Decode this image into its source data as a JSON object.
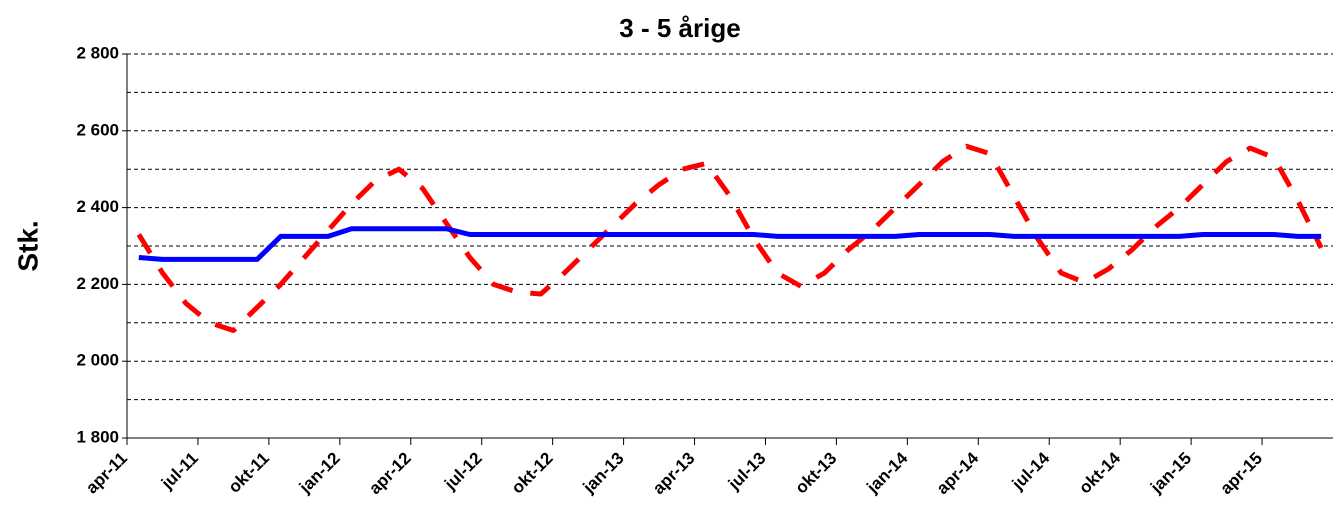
{
  "chart_data": {
    "type": "line",
    "title": "3 - 5 årige",
    "y_label": "Stk.",
    "categories": [
      "apr-11",
      null,
      null,
      "jul-11",
      null,
      null,
      "okt-11",
      null,
      null,
      "jan-12",
      null,
      null,
      "apr-12",
      null,
      null,
      "jul-12",
      null,
      null,
      "okt-12",
      null,
      null,
      "jan-13",
      null,
      null,
      "apr-13",
      null,
      null,
      "jul-13",
      null,
      null,
      "okt-13",
      null,
      null,
      "jan-14",
      null,
      null,
      "apr-14",
      null,
      null,
      "jul-14",
      null,
      null,
      "okt-14",
      null,
      null,
      "jan-15",
      null,
      null,
      "apr-15",
      null,
      null
    ],
    "series": [
      {
        "color": "#ff0000",
        "dashed": true,
        "values": [
          2330,
          2230,
          2150,
          2100,
          2080,
          2140,
          2200,
          2270,
          2340,
          2410,
          2470,
          2500,
          2450,
          2360,
          2270,
          2200,
          2180,
          2175,
          2230,
          2290,
          2350,
          2410,
          2460,
          2500,
          2515,
          2430,
          2320,
          2230,
          2195,
          2230,
          2290,
          2340,
          2400,
          2460,
          2520,
          2560,
          2540,
          2430,
          2320,
          2230,
          2205,
          2240,
          2290,
          2350,
          2400,
          2460,
          2520,
          2555,
          2530,
          2420,
          2295
        ]
      },
      {
        "color": "#0000ff",
        "dashed": false,
        "values": [
          2270,
          2265,
          2265,
          2265,
          2265,
          2265,
          2325,
          2325,
          2325,
          2345,
          2345,
          2345,
          2345,
          2345,
          2330,
          2330,
          2330,
          2330,
          2330,
          2330,
          2330,
          2330,
          2330,
          2330,
          2330,
          2330,
          2330,
          2325,
          2325,
          2325,
          2325,
          2325,
          2325,
          2330,
          2330,
          2330,
          2330,
          2325,
          2325,
          2325,
          2325,
          2325,
          2325,
          2325,
          2325,
          2330,
          2330,
          2330,
          2330,
          2325,
          2325
        ]
      }
    ],
    "ylim": [
      1800,
      2800
    ],
    "yticks": [
      {
        "value": 1800,
        "label": "1 800"
      },
      {
        "value": 2000,
        "label": "2 000"
      },
      {
        "value": 2200,
        "label": "2 200"
      },
      {
        "value": 2400,
        "label": "2 400"
      },
      {
        "value": 2600,
        "label": "2 600"
      },
      {
        "value": 2800,
        "label": "2 800"
      }
    ],
    "minor_yticks": [
      1900,
      2100,
      2300,
      2500,
      2700
    ],
    "grid": true
  }
}
